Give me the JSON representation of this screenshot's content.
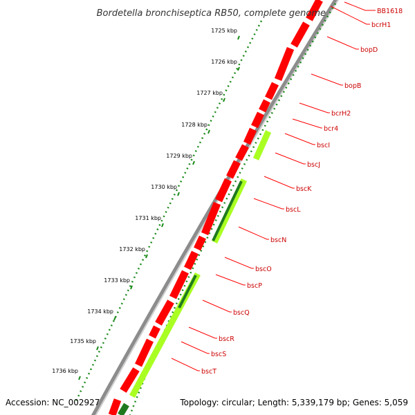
{
  "title": "Bordetella bronchiseptica RB50, complete genome",
  "accession": "Accession: NC_002927",
  "stats": "Topology: circular; Length: 5,339,179 bp; Genes: 5,059",
  "colors": {
    "backbone": "#8c8c8c",
    "forward_gene": "#ff0000",
    "reverse_gene": "#aaff22",
    "reverse_gene_dark": "#1f7a1f",
    "ruler": "#1a8a1a",
    "label": "#cc0000"
  },
  "ruler_labels": [
    "1725 kbp",
    "1726 kbp",
    "1727 kbp",
    "1728 kbp",
    "1729 kbp",
    "1730 kbp",
    "1731 kbp",
    "1732 kbp",
    "1733 kbp",
    "1734 kbp",
    "1735 kbp",
    "1736 kbp"
  ],
  "gene_labels": [
    "BB1618",
    "bcrH1",
    "bopD",
    "bopB",
    "bcrH2",
    "bcr4",
    "bscI",
    "bscJ",
    "bscK",
    "bscL",
    "bscN",
    "bscO",
    "bscP",
    "bscQ",
    "bscR",
    "bscS",
    "bscT"
  ]
}
